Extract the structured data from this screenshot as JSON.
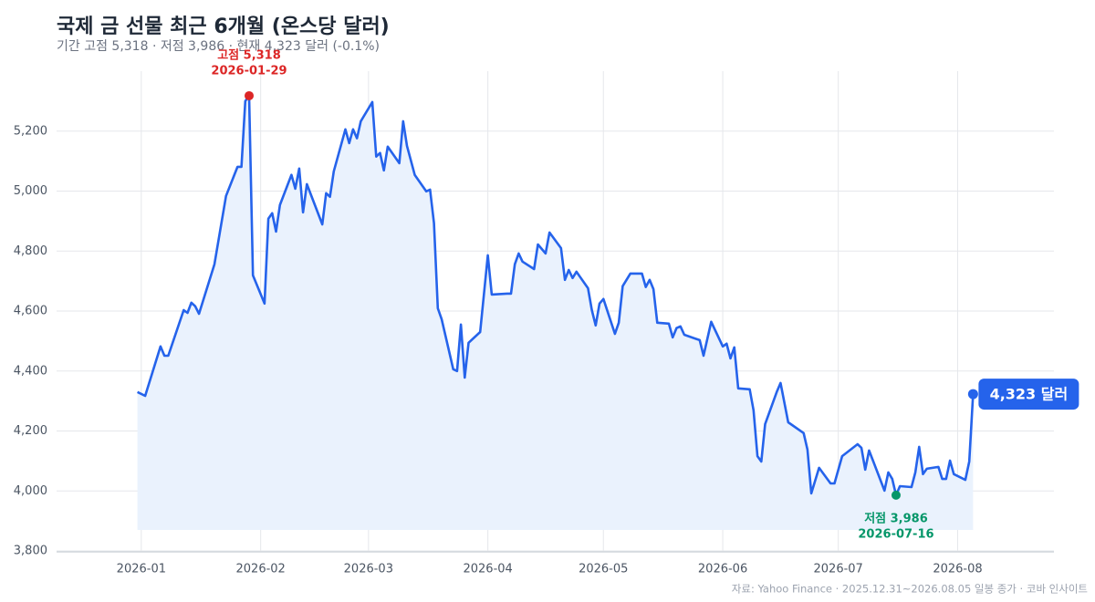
{
  "chart_data": {
    "type": "line",
    "title": "국제 금 선물 최근 6개월 (온스당 달러)",
    "subtitle": "기간 고점 5,318 · 저점 3,986 · 현재 4,323 달러 (-0.1%)",
    "source": "자료: Yahoo Finance · 2025.12.31~2026.08.05 일봉 종가 · 코바 인사이트",
    "end_label": "4,323 달러",
    "color": "#2563eb",
    "area_color": "#eaf2fd",
    "grid": true,
    "x": [
      "2025-12-31",
      "2026-01-02",
      "2026-01-06",
      "2026-01-07",
      "2026-01-08",
      "2026-01-12",
      "2026-01-13",
      "2026-01-14",
      "2026-01-15",
      "2026-01-16",
      "2026-01-20",
      "2026-01-23",
      "2026-01-26",
      "2026-01-27",
      "2026-01-28",
      "2026-01-29",
      "2026-01-30",
      "2026-02-02",
      "2026-02-03",
      "2026-02-04",
      "2026-02-05",
      "2026-02-06",
      "2026-02-09",
      "2026-02-10",
      "2026-02-11",
      "2026-02-12",
      "2026-02-13",
      "2026-02-17",
      "2026-02-18",
      "2026-02-19",
      "2026-02-20",
      "2026-02-23",
      "2026-02-24",
      "2026-02-25",
      "2026-02-26",
      "2026-02-27",
      "2026-03-02",
      "2026-03-03",
      "2026-03-04",
      "2026-03-05",
      "2026-03-06",
      "2026-03-09",
      "2026-03-10",
      "2026-03-11",
      "2026-03-13",
      "2026-03-16",
      "2026-03-17",
      "2026-03-18",
      "2026-03-19",
      "2026-03-20",
      "2026-03-23",
      "2026-03-24",
      "2026-03-25",
      "2026-03-26",
      "2026-03-27",
      "2026-03-30",
      "2026-04-01",
      "2026-04-02",
      "2026-04-06",
      "2026-04-07",
      "2026-04-08",
      "2026-04-09",
      "2026-04-10",
      "2026-04-13",
      "2026-04-14",
      "2026-04-16",
      "2026-04-17",
      "2026-04-20",
      "2026-04-21",
      "2026-04-22",
      "2026-04-23",
      "2026-04-24",
      "2026-04-27",
      "2026-04-28",
      "2026-04-29",
      "2026-04-30",
      "2026-05-01",
      "2026-05-04",
      "2026-05-05",
      "2026-05-06",
      "2026-05-08",
      "2026-05-11",
      "2026-05-12",
      "2026-05-13",
      "2026-05-14",
      "2026-05-15",
      "2026-05-18",
      "2026-05-19",
      "2026-05-20",
      "2026-05-21",
      "2026-05-22",
      "2026-05-26",
      "2026-05-27",
      "2026-05-29",
      "2026-06-01",
      "2026-06-02",
      "2026-06-03",
      "2026-06-04",
      "2026-06-05",
      "2026-06-08",
      "2026-06-09",
      "2026-06-10",
      "2026-06-11",
      "2026-06-12",
      "2026-06-15",
      "2026-06-16",
      "2026-06-18",
      "2026-06-22",
      "2026-06-23",
      "2026-06-24",
      "2026-06-26",
      "2026-06-29",
      "2026-06-30",
      "2026-07-02",
      "2026-07-06",
      "2026-07-07",
      "2026-07-08",
      "2026-07-09",
      "2026-07-10",
      "2026-07-13",
      "2026-07-14",
      "2026-07-15",
      "2026-07-16",
      "2026-07-17",
      "2026-07-20",
      "2026-07-21",
      "2026-07-22",
      "2026-07-23",
      "2026-07-24",
      "2026-07-27",
      "2026-07-28",
      "2026-07-29",
      "2026-07-30",
      "2026-07-31",
      "2026-08-03",
      "2026-08-04",
      "2026-08-05"
    ],
    "values": [
      4330,
      4317,
      4482,
      4451,
      4451,
      4603,
      4594,
      4628,
      4616,
      4591,
      4756,
      4984,
      5081,
      5081,
      5300,
      5318,
      4719,
      4625,
      4908,
      4926,
      4865,
      4954,
      5054,
      5008,
      5075,
      4929,
      5023,
      4889,
      4993,
      4981,
      5066,
      5206,
      5160,
      5206,
      5176,
      5233,
      5297,
      5115,
      5127,
      5069,
      5148,
      5093,
      5233,
      5151,
      5054,
      4999,
      5005,
      4893,
      4609,
      4573,
      4406,
      4400,
      4555,
      4378,
      4494,
      4530,
      4786,
      4655,
      4658,
      4658,
      4756,
      4792,
      4765,
      4740,
      4822,
      4792,
      4862,
      4810,
      4704,
      4737,
      4710,
      4731,
      4676,
      4603,
      4552,
      4625,
      4640,
      4524,
      4561,
      4683,
      4725,
      4725,
      4680,
      4704,
      4673,
      4561,
      4558,
      4512,
      4543,
      4549,
      4521,
      4503,
      4451,
      4564,
      4482,
      4491,
      4442,
      4479,
      4342,
      4339,
      4269,
      4116,
      4098,
      4223,
      4330,
      4360,
      4229,
      4193,
      4138,
      3992,
      4077,
      4025,
      4025,
      4116,
      4156,
      4144,
      4071,
      4135,
      4101,
      4001,
      4062,
      4040,
      3986,
      4016,
      4013,
      4062,
      4147,
      4056,
      4074,
      4080,
      4040,
      4040,
      4101,
      4056,
      4037,
      4098,
      4323
    ],
    "xlim": [
      "2025-12-10",
      "2026-08-26"
    ],
    "xticks": [
      "2026-01",
      "2026-02",
      "2026-03",
      "2026-04",
      "2026-05",
      "2026-06",
      "2026-07",
      "2026-08"
    ],
    "ylim": [
      3800,
      5400
    ],
    "yticks": [
      {
        "value": 3800,
        "label": "3,800"
      },
      {
        "value": 4000,
        "label": "4,000"
      },
      {
        "value": 4200,
        "label": "4,200"
      },
      {
        "value": 4400,
        "label": "4,400"
      },
      {
        "value": 4600,
        "label": "4,600"
      },
      {
        "value": 4800,
        "label": "4,800"
      },
      {
        "value": 5000,
        "label": "5,000"
      },
      {
        "value": 5200,
        "label": "5,200"
      }
    ],
    "annotations": [
      {
        "text": "고점 5,318",
        "date": "2026-01-29",
        "value": 5318,
        "color": "#dc2626",
        "position": "above"
      },
      {
        "text": "저점 3,986",
        "date": "2026-07-16",
        "value": 3986,
        "color": "#059669",
        "position": "below"
      }
    ]
  }
}
